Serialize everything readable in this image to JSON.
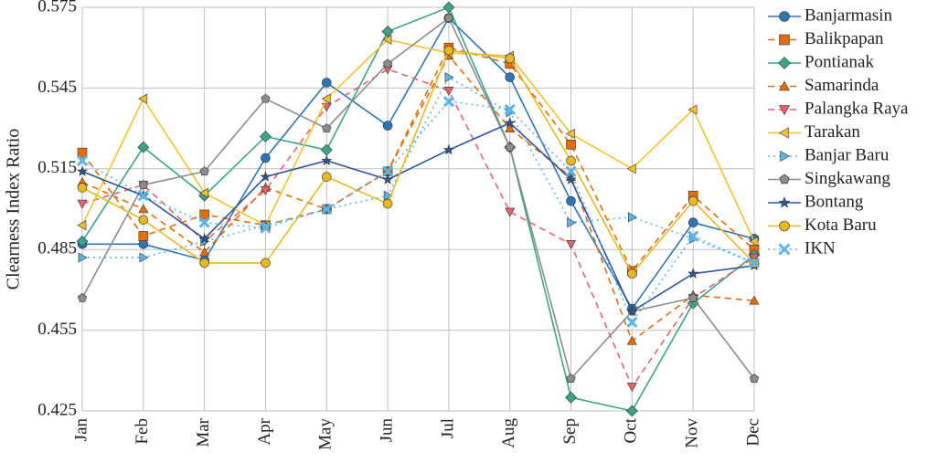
{
  "chart_data": {
    "type": "line",
    "ylabel": "Clearness Index Ratio",
    "xlabel": "",
    "ylim": [
      0.425,
      0.575
    ],
    "yticks": [
      "0.425",
      "0.455",
      "0.485",
      "0.515",
      "0.545",
      "0.575"
    ],
    "grid": true,
    "legend_position": "right",
    "categories": [
      "Jan",
      "Feb",
      "Mar",
      "Apr",
      "May",
      "Jun",
      "Jul",
      "Aug",
      "Sep",
      "Oct",
      "Nov",
      "Dec"
    ],
    "series": [
      {
        "name": "Banjarmasin",
        "color": "#2e75b6",
        "marker": "circle",
        "dash": "solid",
        "values": [
          0.487,
          0.487,
          0.481,
          0.519,
          0.547,
          0.531,
          0.571,
          0.549,
          0.503,
          0.463,
          0.495,
          0.489
        ]
      },
      {
        "name": "Balikpapan",
        "color": "#e46c0a",
        "marker": "square",
        "dash": "dash",
        "values": [
          0.521,
          0.49,
          0.498,
          0.494,
          0.5,
          0.514,
          0.56,
          0.554,
          0.524,
          0.477,
          0.505,
          0.485
        ]
      },
      {
        "name": "Pontianak",
        "color": "#3aa58a",
        "marker": "diamond",
        "dash": "solid",
        "values": [
          0.488,
          0.523,
          0.505,
          0.527,
          0.522,
          0.566,
          0.575,
          0.523,
          0.43,
          0.425,
          0.465,
          0.483
        ]
      },
      {
        "name": "Samarinda",
        "color": "#e46c0a",
        "marker": "triangle",
        "dash": "dash",
        "values": [
          0.51,
          0.5,
          0.484,
          0.508,
          0.5,
          0.514,
          0.557,
          0.53,
          0.512,
          0.451,
          0.468,
          0.466
        ]
      },
      {
        "name": "Palangka Raya",
        "color": "#e5626b",
        "marker": "tri-down",
        "dash": "dash",
        "values": [
          0.502,
          0.509,
          0.488,
          0.507,
          0.538,
          0.552,
          0.544,
          0.499,
          0.487,
          0.434,
          0.467,
          0.482
        ]
      },
      {
        "name": "Tarakan",
        "color": "#f2c22e",
        "marker": "tri-left",
        "dash": "solid",
        "values": [
          0.494,
          0.541,
          0.506,
          0.494,
          0.541,
          0.563,
          0.558,
          0.557,
          0.528,
          0.515,
          0.537,
          0.488
        ]
      },
      {
        "name": "Banjar Baru",
        "color": "#5ab4e6",
        "marker": "tri-right",
        "dash": "dot",
        "values": [
          0.482,
          0.482,
          0.488,
          0.494,
          0.5,
          0.505,
          0.549,
          0.536,
          0.495,
          0.497,
          0.489,
          0.48
        ]
      },
      {
        "name": "Singkawang",
        "color": "#8c8c8c",
        "marker": "pentagon",
        "dash": "solid",
        "values": [
          0.467,
          0.509,
          0.514,
          0.541,
          0.53,
          0.554,
          0.571,
          0.523,
          0.437,
          0.462,
          0.467,
          0.437
        ]
      },
      {
        "name": "Bontang",
        "color": "#2f5597",
        "marker": "star",
        "dash": "solid",
        "values": [
          0.514,
          0.505,
          0.489,
          0.512,
          0.518,
          0.511,
          0.522,
          0.532,
          0.511,
          0.462,
          0.476,
          0.479
        ]
      },
      {
        "name": "Kota Baru",
        "color": "#e8b824",
        "marker": "circle",
        "dash": "solid",
        "values": [
          0.508,
          0.496,
          0.48,
          0.48,
          0.512,
          0.502,
          0.559,
          0.556,
          0.518,
          0.476,
          0.503,
          0.48
        ]
      },
      {
        "name": "IKN",
        "color": "#5ab4e6",
        "marker": "x",
        "dash": "dot",
        "values": [
          0.518,
          0.505,
          0.495,
          0.493,
          0.5,
          0.514,
          0.54,
          0.537,
          0.514,
          0.458,
          0.49,
          0.48
        ]
      }
    ]
  }
}
